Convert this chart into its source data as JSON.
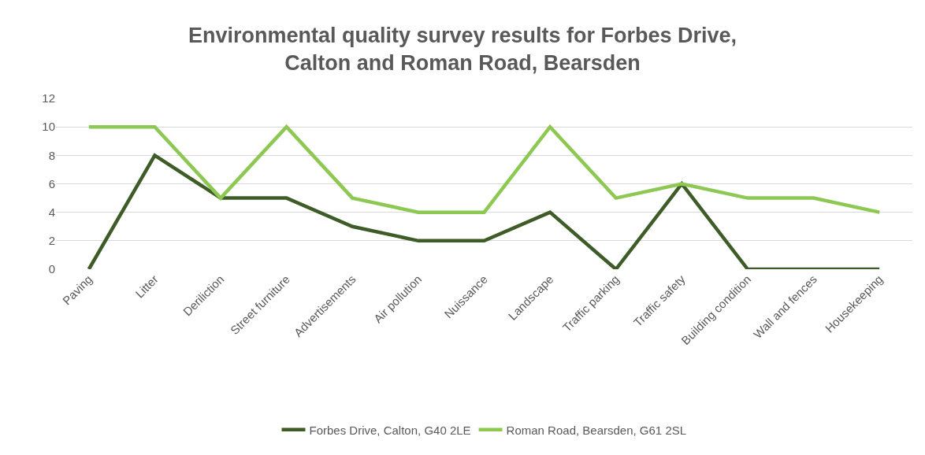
{
  "chart_data": {
    "type": "line",
    "title": "Environmental quality survey results for Forbes Drive,\nCalton and Roman Road, Bearsden",
    "categories": [
      "Paving",
      "Litter",
      "Deriliction",
      "Street furniture",
      "Advertisements",
      "Air pollution",
      "Nuissance",
      "Landscape",
      "Traffic parking",
      "Traffic safety",
      "Building condition",
      "Wall and fences",
      "Housekeeping"
    ],
    "series": [
      {
        "name": "Forbes Drive, Calton, G40 2LE",
        "color": "#3d5c27",
        "values": [
          0,
          8,
          5,
          5,
          3,
          2,
          2,
          4,
          0,
          6,
          0,
          0,
          0
        ]
      },
      {
        "name": "Roman Road, Bearsden, G61 2SL",
        "color": "#8dc853",
        "values": [
          10,
          10,
          5,
          10,
          5,
          4,
          4,
          10,
          5,
          6,
          5,
          5,
          4
        ]
      }
    ],
    "ylim": [
      0,
      12
    ],
    "yticks": [
      0,
      2,
      4,
      6,
      8,
      10,
      12
    ],
    "grid": "y",
    "legend": "bottom",
    "marker": "none",
    "line_style": "solid"
  }
}
